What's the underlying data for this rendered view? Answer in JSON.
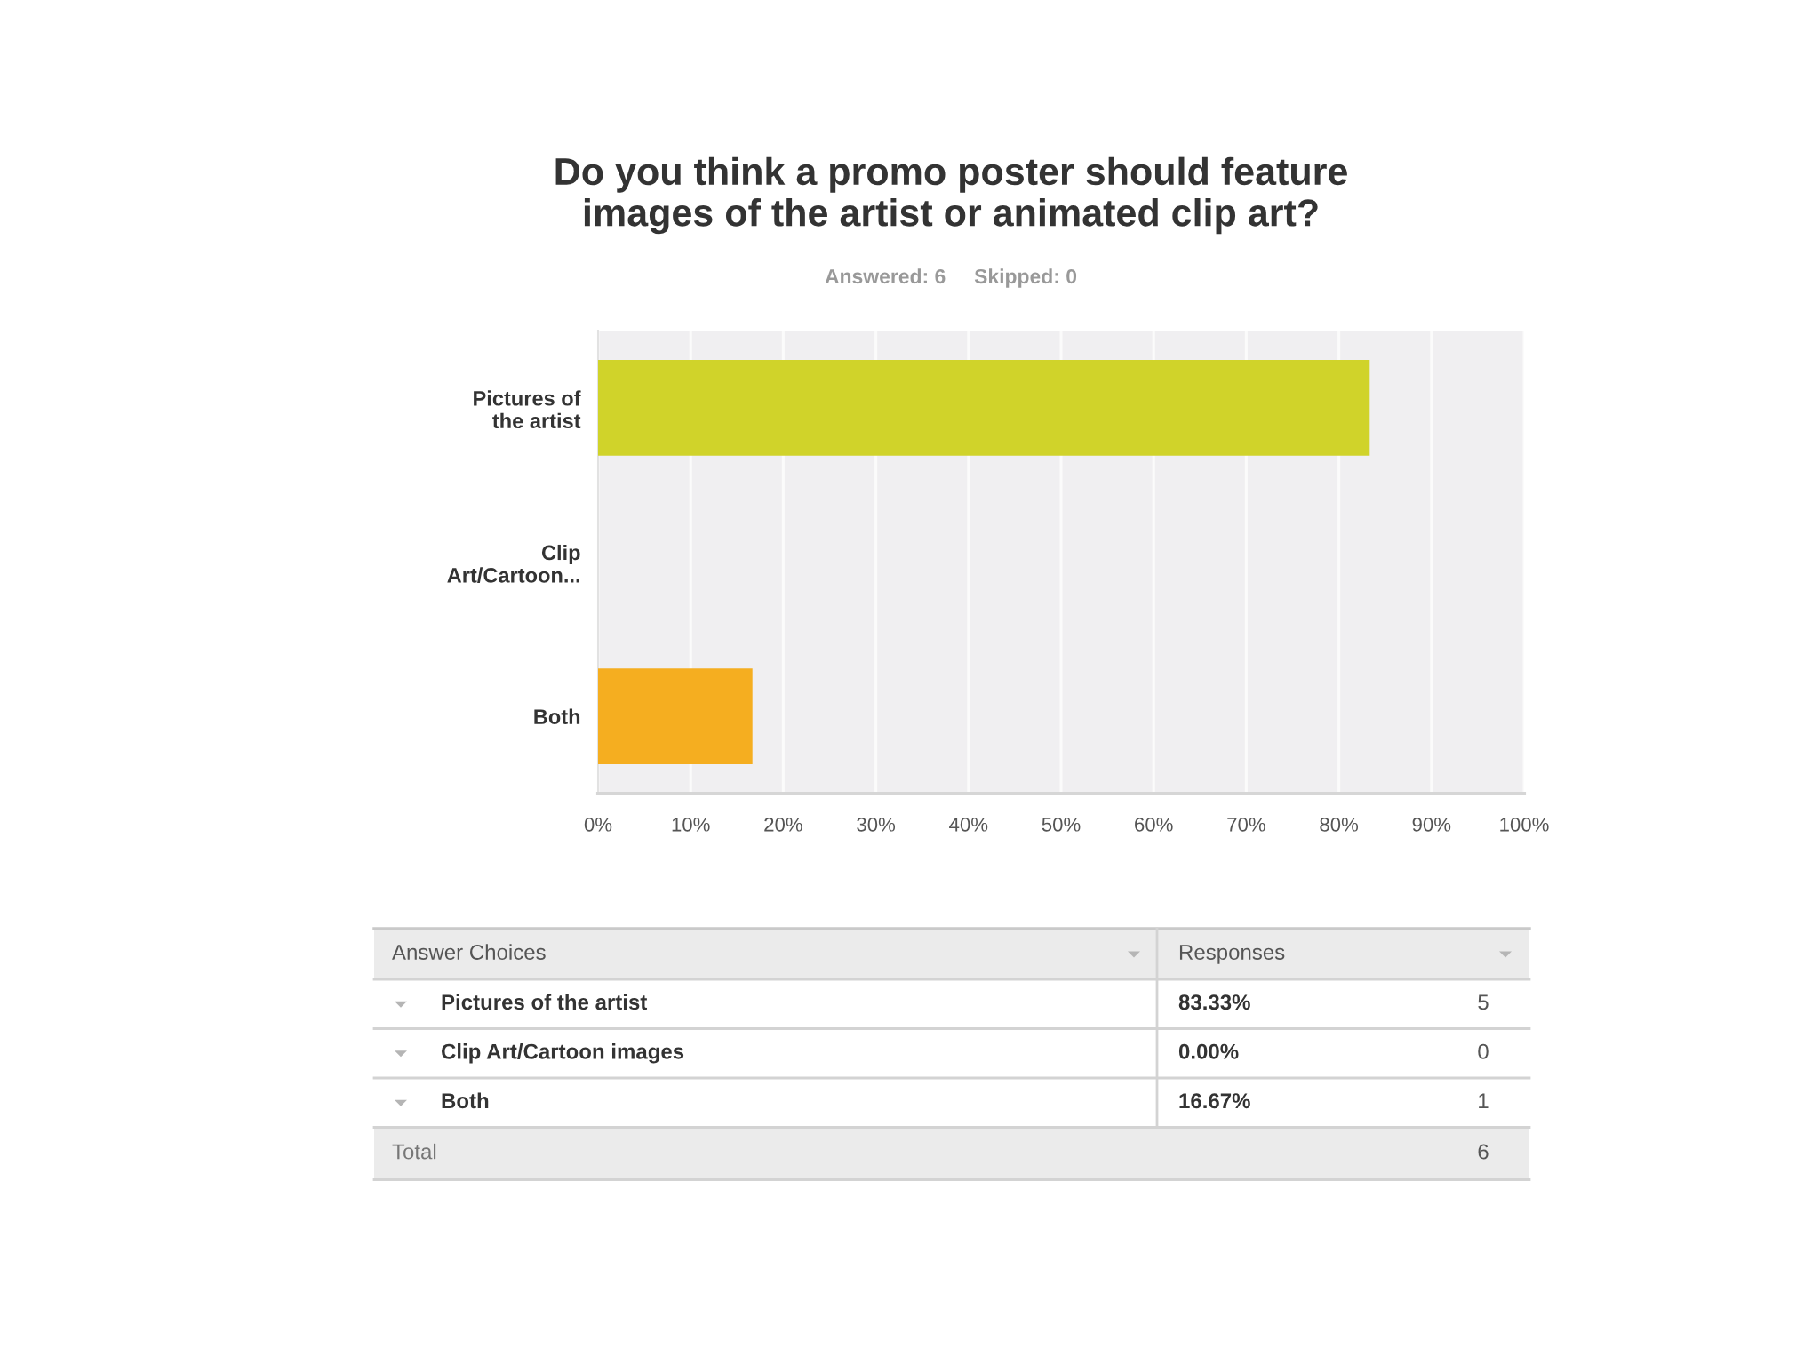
{
  "chart_data": {
    "type": "bar",
    "orientation": "horizontal",
    "title": "Do you think a promo poster should feature\nimages of the artist or animated clip art?",
    "subtitle": "Answered: 6     Skipped: 0",
    "categories": [
      "Pictures of\nthe artist",
      "Clip\nArt/Cartoon...",
      "Both"
    ],
    "values": [
      83.33,
      0,
      16.67
    ],
    "colors": [
      "#d0d32a",
      null,
      "#f5ae20"
    ],
    "xlim": [
      0,
      100
    ],
    "xticks": [
      {
        "value": 0,
        "label": "0%"
      },
      {
        "value": 10,
        "label": "10%"
      },
      {
        "value": 20,
        "label": "20%"
      },
      {
        "value": 30,
        "label": "30%"
      },
      {
        "value": 40,
        "label": "40%"
      },
      {
        "value": 50,
        "label": "50%"
      },
      {
        "value": 60,
        "label": "60%"
      },
      {
        "value": 70,
        "label": "70%"
      },
      {
        "value": 80,
        "label": "80%"
      },
      {
        "value": 90,
        "label": "90%"
      },
      {
        "value": 100,
        "label": "100%"
      }
    ],
    "grid": "x",
    "annotations": [
      "Answer Choices",
      "Responses",
      "Pictures of the artist",
      "83.33%",
      "5",
      "Clip Art/Cartoon images",
      "0.00%",
      "0",
      "Both",
      "16.67%",
      "1",
      "Total",
      "6"
    ]
  }
}
